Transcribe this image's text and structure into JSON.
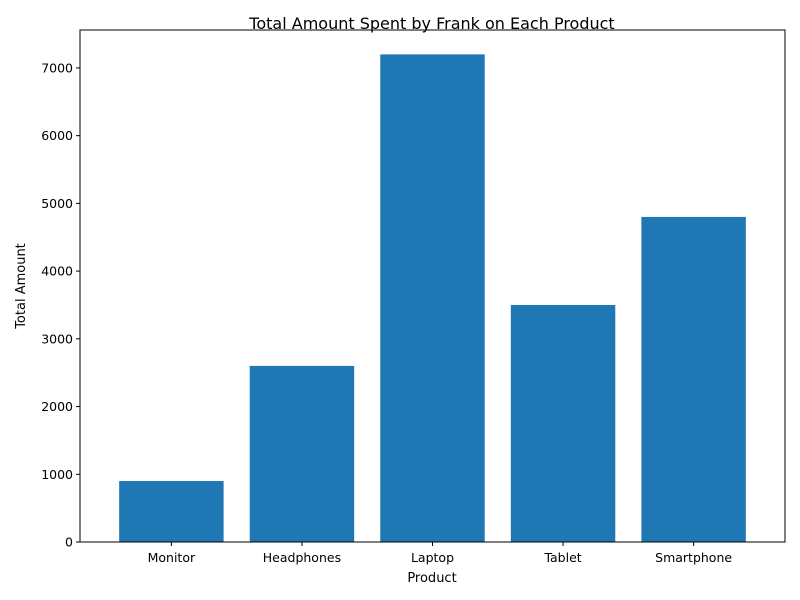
{
  "chart_data": {
    "type": "bar",
    "title": "Total Amount Spent by Frank on Each Product",
    "xlabel": "Product",
    "ylabel": "Total Amount",
    "categories": [
      "Monitor",
      "Headphones",
      "Laptop",
      "Tablet",
      "Smartphone"
    ],
    "values": [
      900,
      2600,
      7200,
      3500,
      4800
    ],
    "ylim": [
      0,
      7560
    ],
    "yticks": [
      0,
      1000,
      2000,
      3000,
      4000,
      5000,
      6000,
      7000
    ],
    "bar_color": "#1f77b4",
    "grid": false,
    "legend": "none"
  }
}
